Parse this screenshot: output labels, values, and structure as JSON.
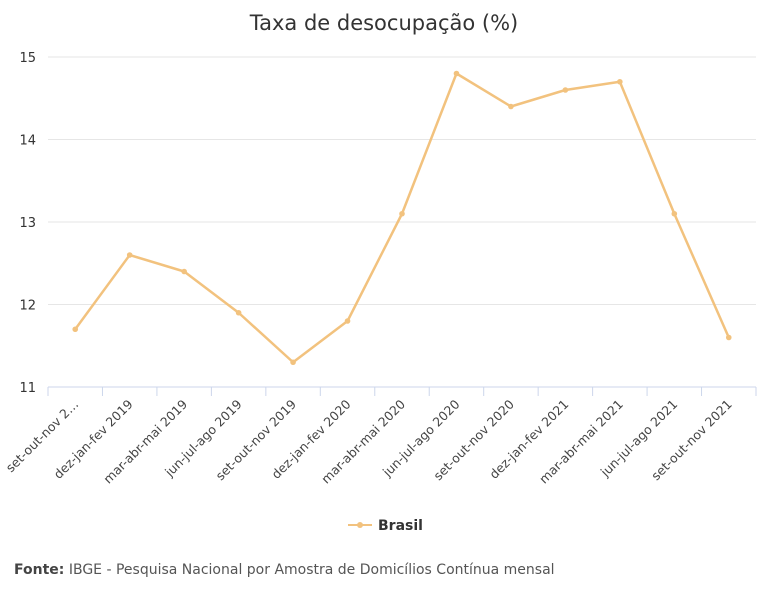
{
  "chart_data": {
    "type": "line",
    "title": "Taxa de desocupação (%)",
    "xlabel": "",
    "ylabel": "",
    "categories": [
      "set-out-nov 2…",
      "dez-jan-fev 2019",
      "mar-abr-mai 2019",
      "jun-jul-ago 2019",
      "set-out-nov 2019",
      "dez-jan-fev 2020",
      "mar-abr-mai 2020",
      "jun-jul-ago 2020",
      "set-out-nov 2020",
      "dez-jan-fev 2021",
      "mar-abr-mai 2021",
      "jun-jul-ago 2021",
      "set-out-nov 2021"
    ],
    "series": [
      {
        "name": "Brasil",
        "values": [
          11.7,
          12.6,
          12.4,
          11.9,
          11.3,
          11.8,
          13.1,
          14.8,
          14.4,
          14.6,
          14.7,
          13.1,
          11.6
        ]
      }
    ],
    "yticks": [
      11,
      12,
      13,
      14,
      15
    ],
    "ylim": [
      11,
      15
    ],
    "grid": true,
    "legend_position": "bottom-center",
    "colors": {
      "series": "#f2c27e",
      "grid": "#e6e6e6",
      "axis": "#ccd6eb"
    }
  },
  "source": {
    "label": "Fonte:",
    "text": "IBGE - Pesquisa Nacional por Amostra de Domicílios Contínua mensal"
  }
}
